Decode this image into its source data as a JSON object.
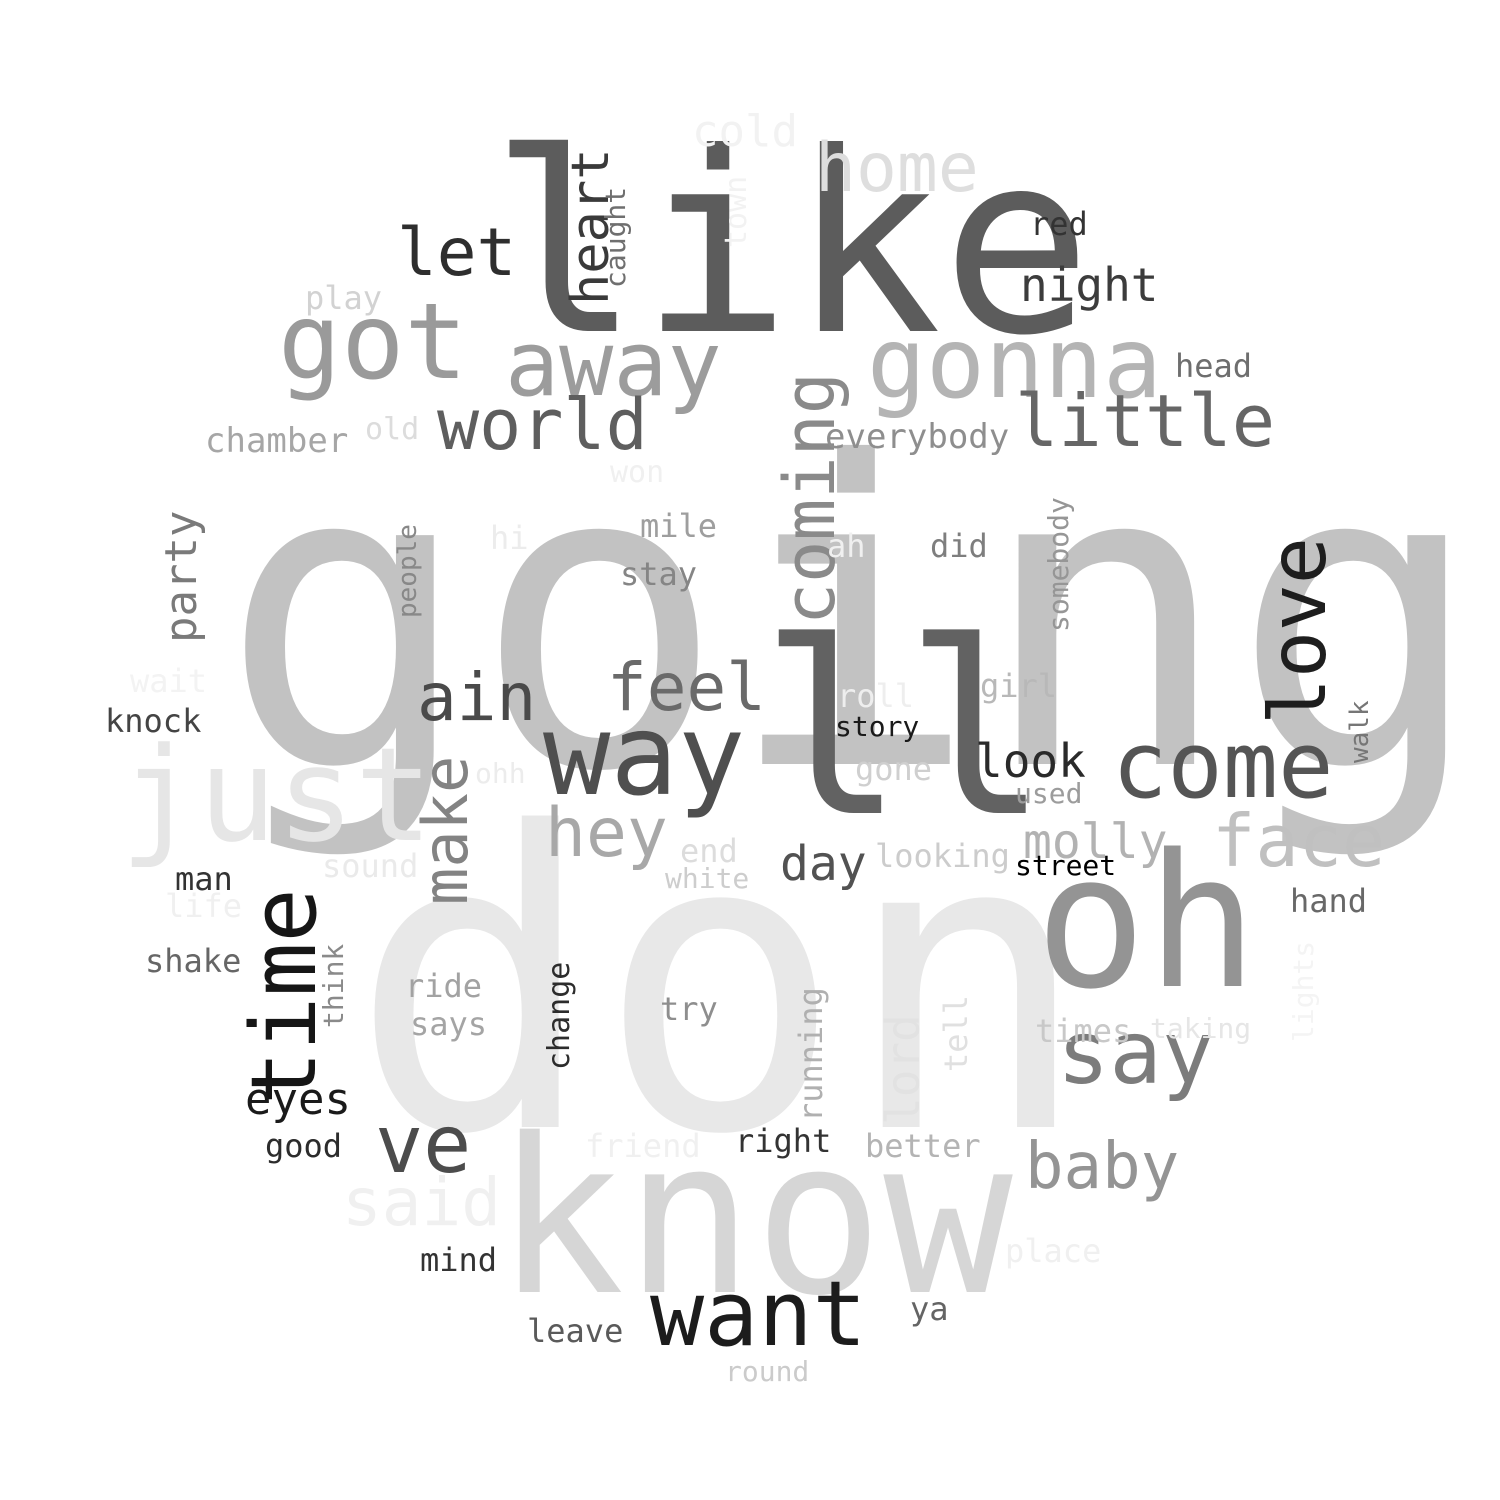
{
  "words": [
    {
      "id": "going",
      "text": "going",
      "color": "#c2c2c2"
    },
    {
      "id": "don",
      "text": "don",
      "color": "#e8e8e8"
    },
    {
      "id": "like",
      "text": "like",
      "color": "#5c5c5c"
    },
    {
      "id": "know",
      "text": "know",
      "color": "#d6d6d6"
    },
    {
      "id": "ll",
      "text": "ll",
      "color": "#626262"
    },
    {
      "id": "oh",
      "text": "oh",
      "color": "#949494"
    },
    {
      "id": "just",
      "text": "just",
      "color": "#e6e6e6"
    },
    {
      "id": "got",
      "text": "got",
      "color": "#9a9a9a"
    },
    {
      "id": "way",
      "text": "way",
      "color": "#4f4f4f"
    },
    {
      "id": "gonna",
      "text": "gonna",
      "color": "#b4b4b4"
    },
    {
      "id": "away",
      "text": "away",
      "color": "#9c9c9c"
    },
    {
      "id": "come",
      "text": "come",
      "color": "#555555"
    },
    {
      "id": "want",
      "text": "want",
      "color": "#1c1c1c"
    },
    {
      "id": "time",
      "text": "time",
      "color": "#161616"
    },
    {
      "id": "home",
      "text": "home",
      "color": "#dedede"
    },
    {
      "id": "say",
      "text": "say",
      "color": "#7c7c7c"
    },
    {
      "id": "love",
      "text": "love",
      "color": "#1e1e1e"
    },
    {
      "id": "face",
      "text": "face",
      "color": "#c0c0c0"
    },
    {
      "id": "little",
      "text": "little",
      "color": "#666666"
    },
    {
      "id": "world",
      "text": "world",
      "color": "#5e5e5e"
    },
    {
      "id": "coming",
      "text": "coming",
      "color": "#8a8a8a"
    },
    {
      "id": "feel",
      "text": "feel",
      "color": "#6a6a6a"
    },
    {
      "id": "ve",
      "text": "ve",
      "color": "#4c4c4c"
    },
    {
      "id": "ain",
      "text": "ain",
      "color": "#4a4a4a"
    },
    {
      "id": "hey",
      "text": "hey",
      "color": "#a8a8a8"
    },
    {
      "id": "baby",
      "text": "baby",
      "color": "#949494"
    },
    {
      "id": "let",
      "text": "let",
      "color": "#2e2e2e"
    },
    {
      "id": "make",
      "text": "make",
      "color": "#838383"
    },
    {
      "id": "said",
      "text": "said",
      "color": "#f0f0f0"
    },
    {
      "id": "night",
      "text": "night",
      "color": "#3c3c3c"
    },
    {
      "id": "heart",
      "text": "heart",
      "color": "#3a3a3a"
    },
    {
      "id": "look",
      "text": "look",
      "color": "#2a2a2a"
    },
    {
      "id": "molly",
      "text": "molly",
      "color": "#b2b2b2"
    },
    {
      "id": "party",
      "text": "party",
      "color": "#7a7a7a"
    },
    {
      "id": "day",
      "text": "day",
      "color": "#525252"
    },
    {
      "id": "eyes",
      "text": "eyes",
      "color": "#1a1a1a"
    },
    {
      "id": "cold",
      "text": "cold",
      "color": "#f2f2f2"
    },
    {
      "id": "lord",
      "text": "lord",
      "color": "#e2e2e2"
    },
    {
      "id": "play",
      "text": "play",
      "color": "#d2d2d2"
    },
    {
      "id": "chamber",
      "text": "chamber",
      "color": "#a6a6a6"
    },
    {
      "id": "old",
      "text": "old",
      "color": "#dcdcdc"
    },
    {
      "id": "everybody",
      "text": "everybody",
      "color": "#8e8e8e"
    },
    {
      "id": "head",
      "text": "head",
      "color": "#6e6e6e"
    },
    {
      "id": "red",
      "text": "red",
      "color": "#333333"
    },
    {
      "id": "caught",
      "text": "caught",
      "color": "#6f6f6f"
    },
    {
      "id": "town",
      "text": "town",
      "color": "#f2f2f2"
    },
    {
      "id": "won",
      "text": "won",
      "color": "#f0f0f0"
    },
    {
      "id": "mile",
      "text": "mile",
      "color": "#9e9e9e"
    },
    {
      "id": "hi",
      "text": "hi",
      "color": "#ececec"
    },
    {
      "id": "ah",
      "text": "ah",
      "color": "#f0f0f0"
    },
    {
      "id": "did",
      "text": "did",
      "color": "#7e7e7e"
    },
    {
      "id": "somebody",
      "text": "somebody",
      "color": "#969696"
    },
    {
      "id": "people",
      "text": "people",
      "color": "#888888"
    },
    {
      "id": "stay",
      "text": "stay",
      "color": "#858585"
    },
    {
      "id": "wait",
      "text": "wait",
      "color": "#f3f3f3"
    },
    {
      "id": "knock",
      "text": "knock",
      "color": "#444444"
    },
    {
      "id": "roll",
      "text": "roll",
      "color": "#eeeeee"
    },
    {
      "id": "girl",
      "text": "girl",
      "color": "#b8b8b8"
    },
    {
      "id": "story",
      "text": "story",
      "color": "#1a1a1a"
    },
    {
      "id": "walk",
      "text": "walk",
      "color": "#767676"
    },
    {
      "id": "ohh",
      "text": "ohh",
      "color": "#ececec"
    },
    {
      "id": "gone",
      "text": "gone",
      "color": "#cfcfcf"
    },
    {
      "id": "used",
      "text": "used",
      "color": "#9c9c9c"
    },
    {
      "id": "end",
      "text": "end",
      "color": "#dcdcdc"
    },
    {
      "id": "white",
      "text": "white",
      "color": "#cdcdcd"
    },
    {
      "id": "looking",
      "text": "looking",
      "color": "#cccccc"
    },
    {
      "id": "street",
      "text": "street",
      "color": "#000000"
    },
    {
      "id": "sound",
      "text": "sound",
      "color": "#eaeaea"
    },
    {
      "id": "man",
      "text": "man",
      "color": "#333333"
    },
    {
      "id": "life",
      "text": "life",
      "color": "#f0f0f0"
    },
    {
      "id": "hand",
      "text": "hand",
      "color": "#686868"
    },
    {
      "id": "shake",
      "text": "shake",
      "color": "#666666"
    },
    {
      "id": "think",
      "text": "think",
      "color": "#8a8a8a"
    },
    {
      "id": "ride",
      "text": "ride",
      "color": "#a2a2a2"
    },
    {
      "id": "says",
      "text": "says",
      "color": "#a4a4a4"
    },
    {
      "id": "change",
      "text": "change",
      "color": "#2c2c2c"
    },
    {
      "id": "try",
      "text": "try",
      "color": "#8e8e8e"
    },
    {
      "id": "running",
      "text": "running",
      "color": "#b0b0b0"
    },
    {
      "id": "tell",
      "text": "tell",
      "color": "#e0e0e0"
    },
    {
      "id": "times",
      "text": "times",
      "color": "#c8c8c8"
    },
    {
      "id": "taking",
      "text": "taking",
      "color": "#e6e6e6"
    },
    {
      "id": "lights",
      "text": "lights",
      "color": "#f4f4f4"
    },
    {
      "id": "good",
      "text": "good",
      "color": "#2c2c2c"
    },
    {
      "id": "friend",
      "text": "friend",
      "color": "#f0f0f0"
    },
    {
      "id": "right",
      "text": "right",
      "color": "#333333"
    },
    {
      "id": "better",
      "text": "better",
      "color": "#b4b4b4"
    },
    {
      "id": "mind",
      "text": "mind",
      "color": "#333333"
    },
    {
      "id": "place",
      "text": "place",
      "color": "#f0f0f0"
    },
    {
      "id": "ya",
      "text": "ya",
      "color": "#646464"
    },
    {
      "id": "leave",
      "text": "leave",
      "color": "#5a5a5a"
    },
    {
      "id": "round",
      "text": "round",
      "color": "#cbcbcb"
    }
  ]
}
